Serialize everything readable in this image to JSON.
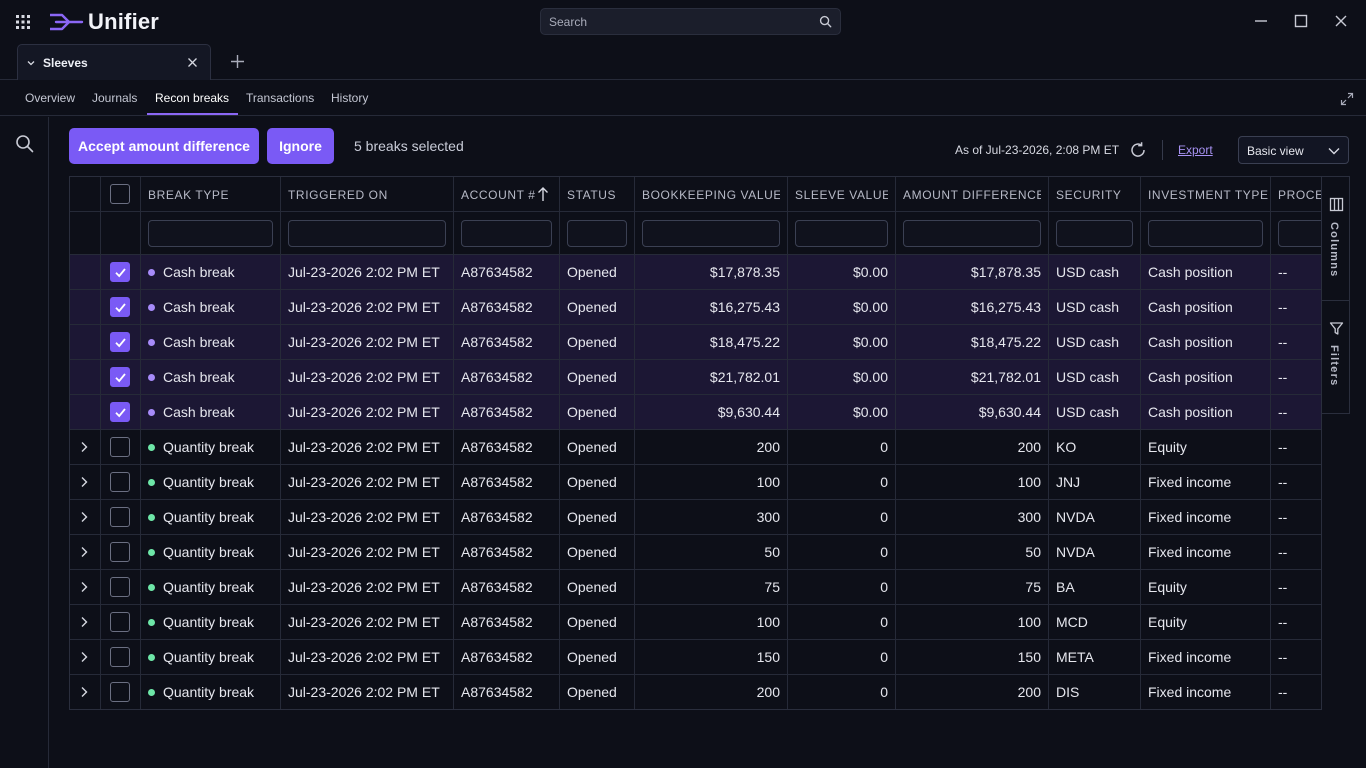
{
  "app": {
    "name": "Unifier"
  },
  "search": {
    "placeholder": "Search"
  },
  "tab": {
    "label": "Sleeves"
  },
  "subtabs": [
    "Overview",
    "Journals",
    "Recon breaks",
    "Transactions",
    "History"
  ],
  "active_subtab": "Recon breaks",
  "toolbar": {
    "accept_label": "Accept amount difference",
    "ignore_label": "Ignore",
    "selection_text": "5 breaks selected",
    "as_of": "As of Jul-23-2026, 2:08 PM ET",
    "export_label": "Export",
    "view_value": "Basic view"
  },
  "grid": {
    "columns": [
      "Break type",
      "Triggered on",
      "Account #",
      "Status",
      "Bookkeeping value",
      "Sleeve value",
      "Amount difference",
      "Security",
      "Investment type",
      "Proces"
    ],
    "rows": [
      {
        "selected": true,
        "type": "Cash break",
        "triggered": "Jul-23-2026 2:02 PM ET",
        "account": "A87634582",
        "status": "Opened",
        "bookkeeping": "$17,878.35",
        "sleeve": "$0.00",
        "difference": "$17,878.35",
        "security": "USD cash",
        "investment": "Cash position",
        "process": "--"
      },
      {
        "selected": true,
        "type": "Cash break",
        "triggered": "Jul-23-2026 2:02 PM ET",
        "account": "A87634582",
        "status": "Opened",
        "bookkeeping": "$16,275.43",
        "sleeve": "$0.00",
        "difference": "$16,275.43",
        "security": "USD cash",
        "investment": "Cash position",
        "process": "--"
      },
      {
        "selected": true,
        "type": "Cash break",
        "triggered": "Jul-23-2026 2:02 PM ET",
        "account": "A87634582",
        "status": "Opened",
        "bookkeeping": "$18,475.22",
        "sleeve": "$0.00",
        "difference": "$18,475.22",
        "security": "USD cash",
        "investment": "Cash position",
        "process": "--"
      },
      {
        "selected": true,
        "type": "Cash break",
        "triggered": "Jul-23-2026 2:02 PM ET",
        "account": "A87634582",
        "status": "Opened",
        "bookkeeping": "$21,782.01",
        "sleeve": "$0.00",
        "difference": "$21,782.01",
        "security": "USD cash",
        "investment": "Cash position",
        "process": "--"
      },
      {
        "selected": true,
        "type": "Cash break",
        "triggered": "Jul-23-2026 2:02 PM ET",
        "account": "A87634582",
        "status": "Opened",
        "bookkeeping": "$9,630.44",
        "sleeve": "$0.00",
        "difference": "$9,630.44",
        "security": "USD cash",
        "investment": "Cash position",
        "process": "--"
      },
      {
        "selected": false,
        "type": "Quantity break",
        "triggered": "Jul-23-2026 2:02 PM ET",
        "account": "A87634582",
        "status": "Opened",
        "bookkeeping": "200",
        "sleeve": "0",
        "difference": "200",
        "security": "KO",
        "investment": "Equity",
        "process": "--"
      },
      {
        "selected": false,
        "type": "Quantity break",
        "triggered": "Jul-23-2026 2:02 PM ET",
        "account": "A87634582",
        "status": "Opened",
        "bookkeeping": "100",
        "sleeve": "0",
        "difference": "100",
        "security": "JNJ",
        "investment": "Fixed income",
        "process": "--"
      },
      {
        "selected": false,
        "type": "Quantity break",
        "triggered": "Jul-23-2026 2:02 PM ET",
        "account": "A87634582",
        "status": "Opened",
        "bookkeeping": "300",
        "sleeve": "0",
        "difference": "300",
        "security": "NVDA",
        "investment": "Fixed income",
        "process": "--"
      },
      {
        "selected": false,
        "type": "Quantity break",
        "triggered": "Jul-23-2026 2:02 PM ET",
        "account": "A87634582",
        "status": "Opened",
        "bookkeeping": "50",
        "sleeve": "0",
        "difference": "50",
        "security": "NVDA",
        "investment": "Fixed income",
        "process": "--"
      },
      {
        "selected": false,
        "type": "Quantity break",
        "triggered": "Jul-23-2026 2:02 PM ET",
        "account": "A87634582",
        "status": "Opened",
        "bookkeeping": "75",
        "sleeve": "0",
        "difference": "75",
        "security": "BA",
        "investment": "Equity",
        "process": "--"
      },
      {
        "selected": false,
        "type": "Quantity break",
        "triggered": "Jul-23-2026 2:02 PM ET",
        "account": "A87634582",
        "status": "Opened",
        "bookkeeping": "100",
        "sleeve": "0",
        "difference": "100",
        "security": "MCD",
        "investment": "Equity",
        "process": "--"
      },
      {
        "selected": false,
        "type": "Quantity break",
        "triggered": "Jul-23-2026 2:02 PM ET",
        "account": "A87634582",
        "status": "Opened",
        "bookkeeping": "150",
        "sleeve": "0",
        "difference": "150",
        "security": "META",
        "investment": "Fixed income",
        "process": "--"
      },
      {
        "selected": false,
        "type": "Quantity break",
        "triggered": "Jul-23-2026 2:02 PM ET",
        "account": "A87634582",
        "status": "Opened",
        "bookkeeping": "200",
        "sleeve": "0",
        "difference": "200",
        "security": "DIS",
        "investment": "Fixed income",
        "process": "--"
      }
    ]
  },
  "side_panel": {
    "columns_label": "Columns",
    "filters_label": "Filters"
  },
  "icons": {
    "apps": "apps-grid-icon",
    "logo": "unifier-logo-icon",
    "search": "search-icon",
    "minimize": "minimize-icon",
    "maximize": "maximize-icon",
    "close": "close-icon",
    "refresh": "refresh-icon",
    "sort": "sort-ascending-icon",
    "columns": "columns-icon",
    "filter": "filter-icon"
  },
  "colors": {
    "accent": "#7a5af5",
    "selected_row": "#1c1734",
    "cash_dot": "#a78bfa",
    "quantity_dot": "#6ee7a8",
    "export_link": "#a792f2"
  }
}
